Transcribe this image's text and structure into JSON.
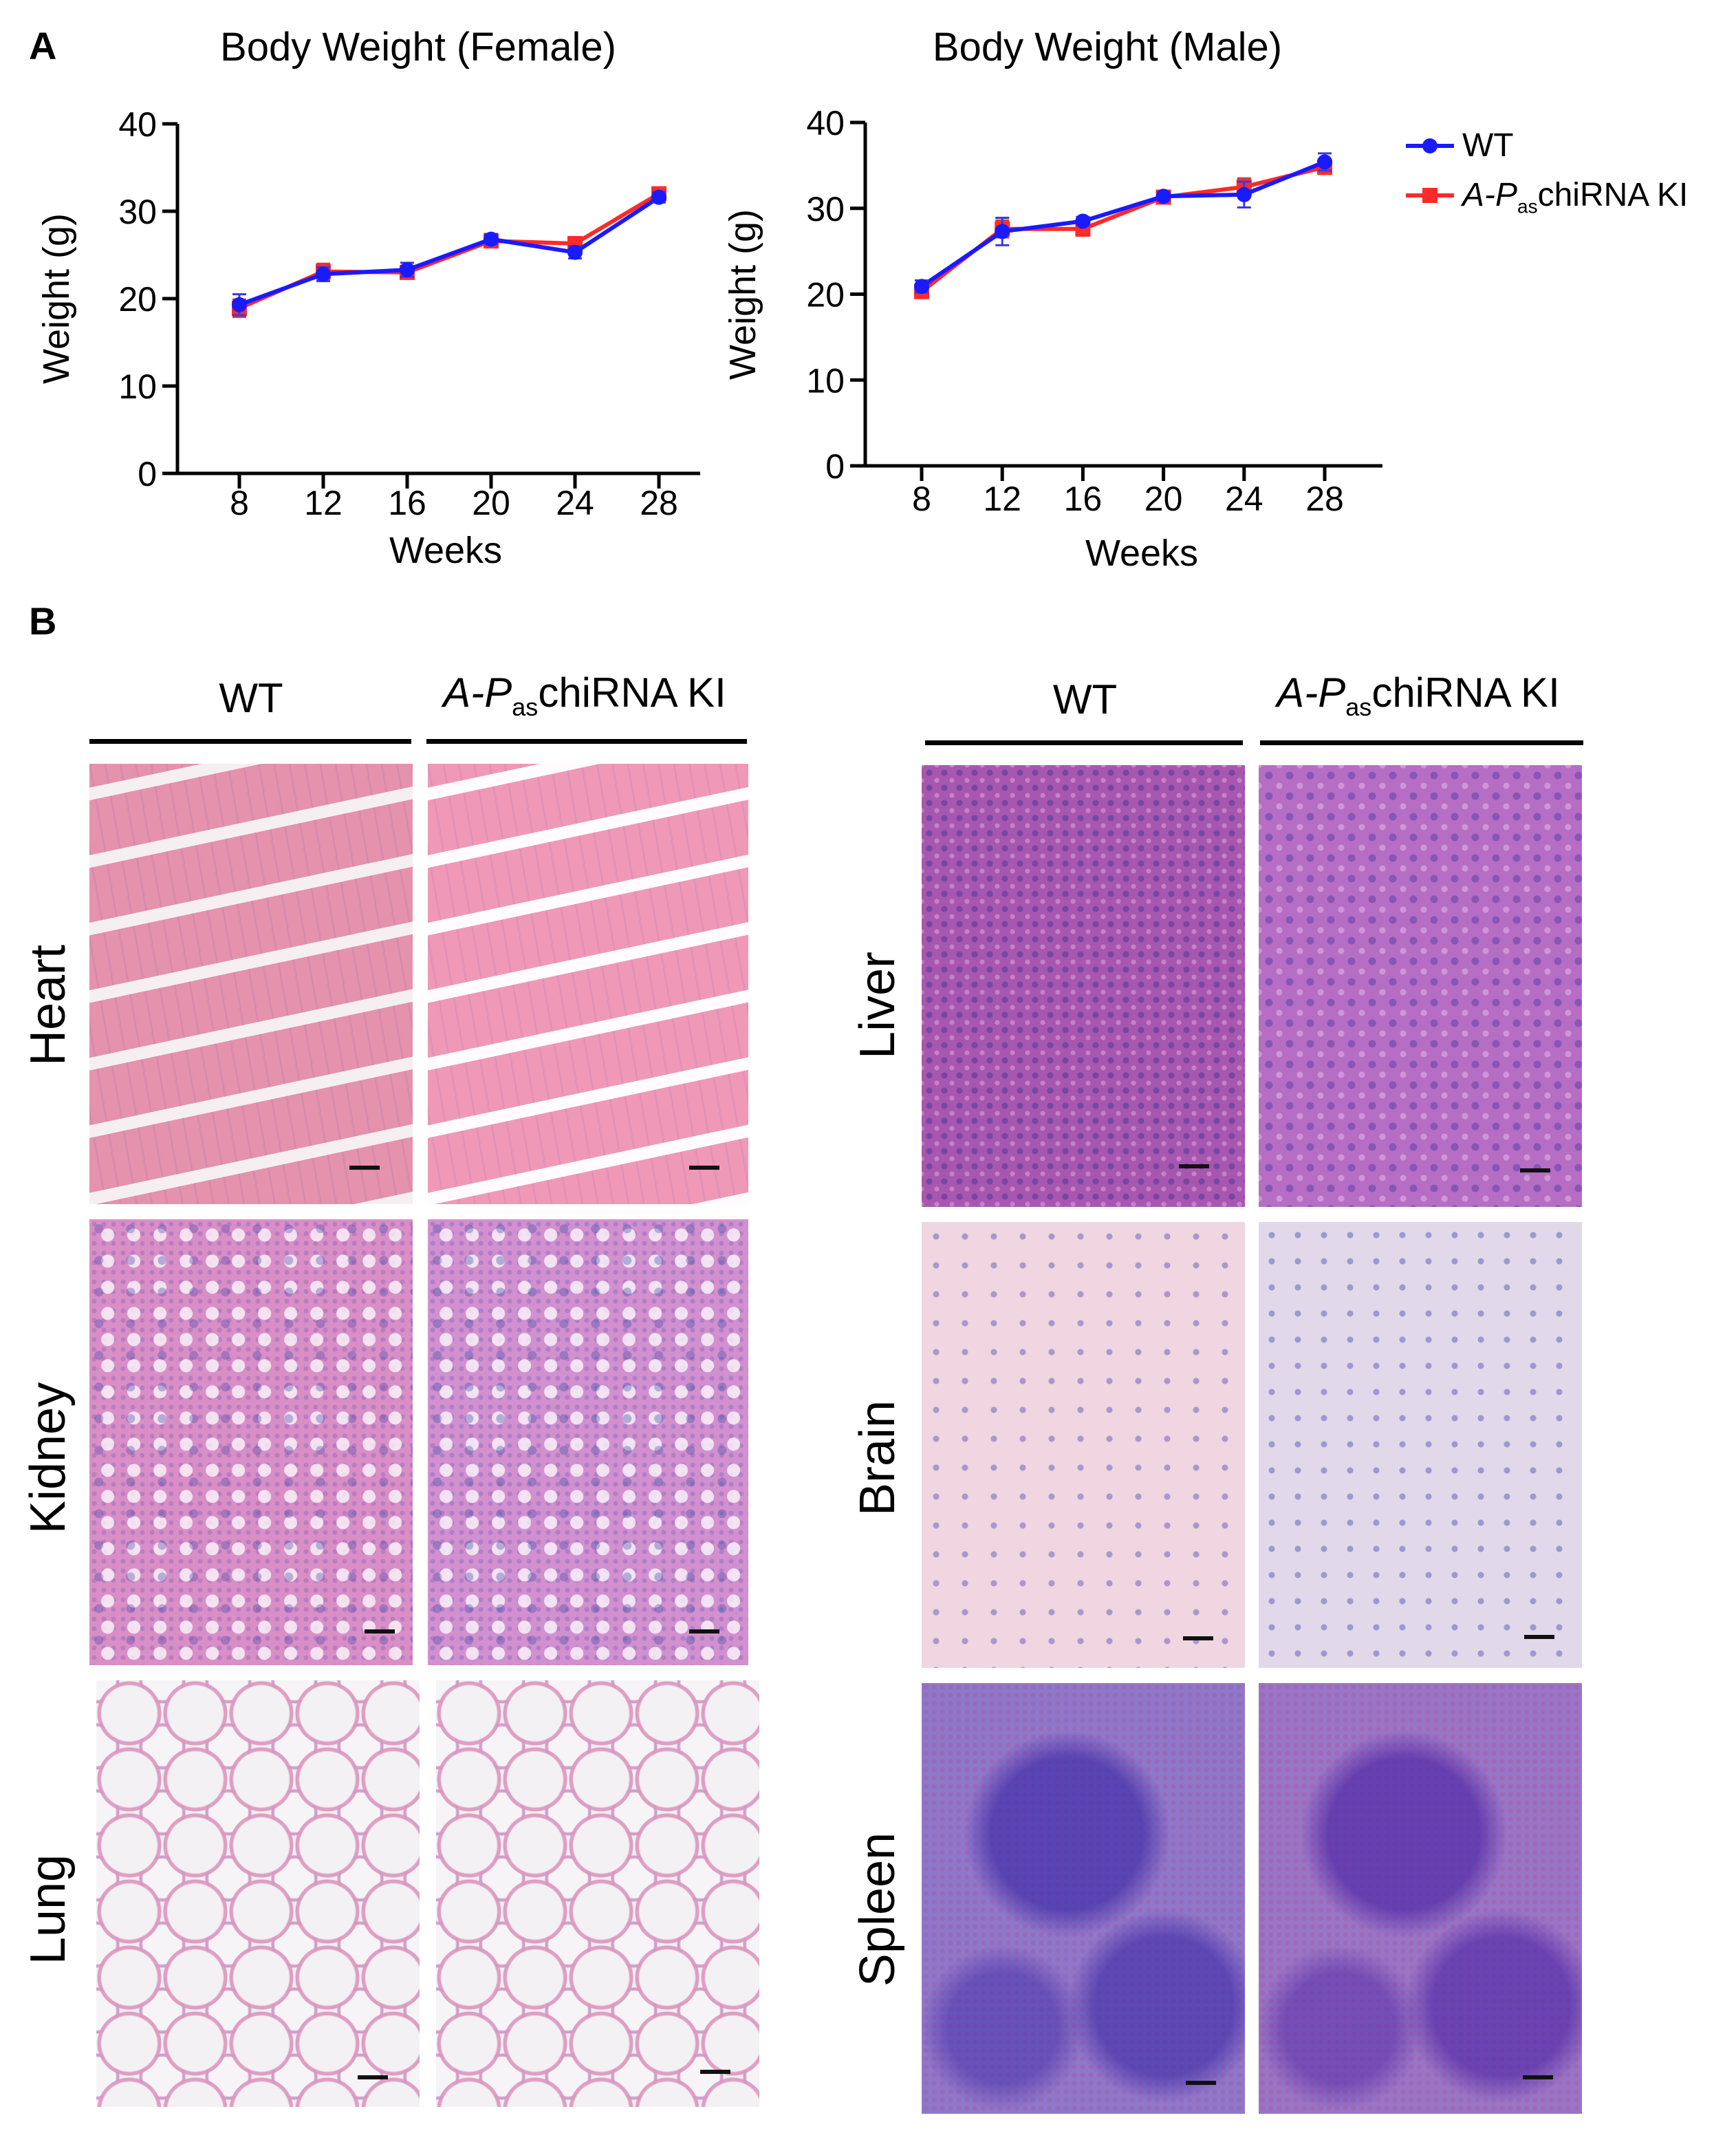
{
  "panels": {
    "a": "A",
    "b": "B"
  },
  "chart_data": [
    {
      "type": "line",
      "title": "Body Weight (Female)",
      "xlabel": "Weeks",
      "ylabel": "Weight (g)",
      "x": [
        8,
        12,
        16,
        20,
        24,
        28
      ],
      "ylim": [
        0,
        40
      ],
      "yticks": [
        0,
        10,
        20,
        30,
        40
      ],
      "series": [
        {
          "name": "WT",
          "color": "#1a1aff",
          "marker": "circle",
          "values": [
            19.3,
            22.8,
            23.3,
            26.8,
            25.3,
            31.6
          ],
          "err": [
            1.2,
            0.8,
            0.8,
            0.6,
            0.7,
            0.6
          ]
        },
        {
          "name": "A-PaschiRNA KI",
          "color": "#ff2a2a",
          "marker": "square",
          "values": [
            18.9,
            23.1,
            23.0,
            26.6,
            26.3,
            32.0
          ],
          "err": [
            1.0,
            0.9,
            0.7,
            0.6,
            0.7,
            0.6
          ]
        }
      ]
    },
    {
      "type": "line",
      "title": "Body Weight (Male)",
      "xlabel": "Weeks",
      "ylabel": "Weight (g)",
      "x": [
        8,
        12,
        16,
        20,
        24,
        28
      ],
      "ylim": [
        0,
        40
      ],
      "yticks": [
        0,
        10,
        20,
        30,
        40
      ],
      "series": [
        {
          "name": "WT",
          "color": "#1a1aff",
          "marker": "circle",
          "values": [
            20.9,
            27.3,
            28.5,
            31.4,
            31.6,
            35.4
          ],
          "err": [
            0.7,
            1.6,
            0.5,
            0.5,
            1.5,
            1.0
          ]
        },
        {
          "name": "A-PaschiRNA KI",
          "color": "#ff2a2a",
          "marker": "square",
          "values": [
            20.3,
            27.6,
            27.6,
            31.3,
            32.5,
            34.8
          ],
          "err": [
            0.6,
            1.0,
            0.8,
            0.5,
            1.0,
            0.8
          ]
        }
      ]
    }
  ],
  "legend": {
    "wt": "WT",
    "ki_prefix": "A-P",
    "ki_sub": "as",
    "ki_suffix": "chiRNA KI"
  },
  "histology": {
    "col_wt": "WT",
    "col_ki_prefix": "A-P",
    "col_ki_sub": "as",
    "col_ki_suffix": "chiRNA KI",
    "organs_left": [
      "Heart",
      "Kidney",
      "Lung"
    ],
    "organs_right": [
      "Liver",
      "Brain",
      "Spleen"
    ]
  }
}
